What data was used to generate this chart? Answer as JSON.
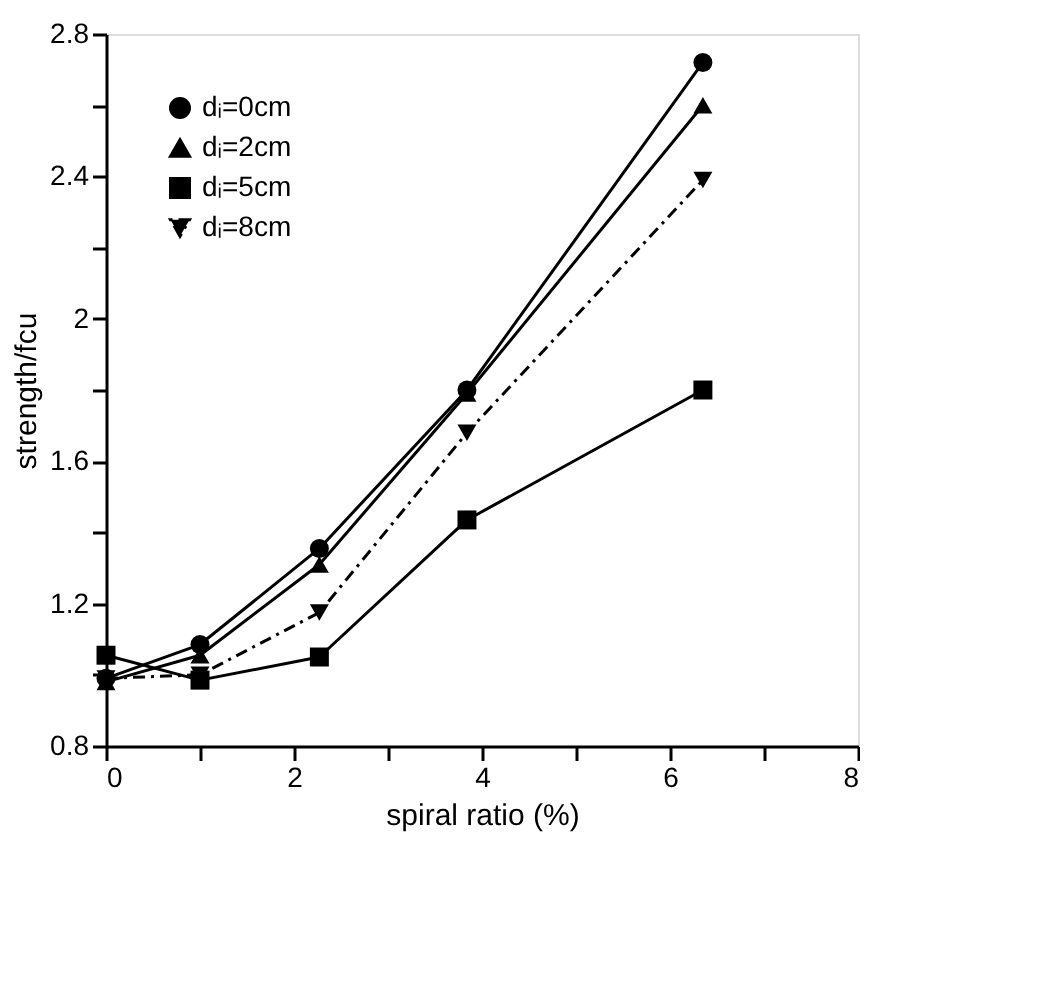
{
  "chart_data": {
    "type": "line",
    "xlabel": "spiral ratio (%)",
    "ylabel": "strength/fcu",
    "xlim": [
      0,
      8
    ],
    "ylim": [
      0.8,
      2.8
    ],
    "xticks": [
      0,
      {
        "value": 1,
        "label": null
      },
      2,
      {
        "value": 3,
        "label": null
      },
      4,
      {
        "value": 5,
        "label": null
      },
      6,
      {
        "value": 7,
        "label": null
      },
      8
    ],
    "yticks": [
      0.8,
      {
        "value": 1.0,
        "label": null
      },
      1.2,
      {
        "value": 1.4,
        "label": null
      },
      1.6,
      {
        "value": 1.8,
        "label": null
      },
      2,
      {
        "value": 2.2,
        "label": null
      },
      2.4,
      {
        "value": 2.6,
        "label": null
      },
      2.8
    ],
    "grid": false,
    "legend": "top left",
    "series": [
      {
        "name": "dᵢ=0cm",
        "color": "#000000",
        "marker": "circle",
        "line_style": "solid",
        "x": [
          0,
          1,
          2.27,
          3.84,
          6.35
        ],
        "values": [
          0.99,
          1.085,
          1.355,
          1.8,
          2.72
        ]
      },
      {
        "name": "dᵢ=2cm",
        "color": "#000000",
        "marker": "triangle",
        "line_style": "solid",
        "x": [
          0,
          1,
          2.27,
          3.84,
          6.35
        ],
        "values": [
          0.98,
          1.055,
          1.31,
          1.79,
          2.6
        ]
      },
      {
        "name": "dᵢ=5cm",
        "color": "#000000",
        "marker": "square",
        "line_style": "solid",
        "x": [
          0,
          1,
          2.27,
          3.84,
          6.35
        ],
        "values": [
          1.055,
          0.985,
          1.05,
          1.435,
          1.8
        ]
      },
      {
        "name": "dᵢ=8cm",
        "color": "#000000",
        "marker": "triangle-down",
        "line_style": "dashdot",
        "x": [
          0,
          1,
          2.27,
          3.84,
          6.35
        ],
        "values": [
          0.99,
          1.0,
          1.175,
          1.68,
          2.39
        ]
      }
    ]
  }
}
